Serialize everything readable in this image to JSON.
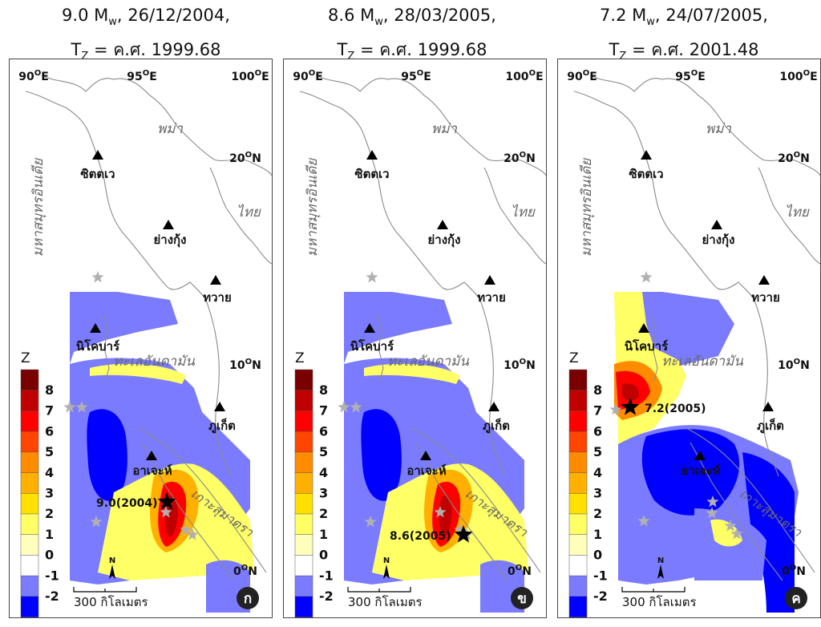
{
  "panels": [
    {
      "id": "a",
      "title_line1": "9.0 M",
      "title_sub1": "w",
      "title_rest1": ", 26/12/2004,",
      "title_line2_pre": "T",
      "title_sub2": "Z",
      "title_line2_rest": " = ค.ศ. 1999.68",
      "badge": "ก",
      "event_label": "9.0(2004)"
    },
    {
      "id": "b",
      "title_line1": "8.6 M",
      "title_sub1": "w",
      "title_rest1": ", 28/03/2005,",
      "title_line2_pre": "T",
      "title_sub2": "Z",
      "title_line2_rest": " = ค.ศ. 1999.68",
      "badge": "ข",
      "event_label": "8.6(2005)"
    },
    {
      "id": "c",
      "title_line1": "7.2 M",
      "title_sub1": "w",
      "title_rest1": ", 24/07/2005,",
      "title_line2_pre": "T",
      "title_sub2": "Z",
      "title_line2_rest": " = ค.ศ. 2001.48",
      "badge": "ค",
      "event_label": "7.2(2005)"
    }
  ],
  "map_labels": {
    "lon_90": "90",
    "lon_95": "95",
    "lon_100": "100",
    "lon_suffix": "E",
    "lat_20": "20",
    "lat_10": "10",
    "lat_0": "0",
    "lat_suffix": "N",
    "deg": "O",
    "myanmar": "พม่า",
    "thailand": "ไทย",
    "indian_ocean": "มหาสมุทรอินเดีย",
    "andaman_sea": "ทะเลอันดามัน",
    "sumatra": "เกาะสุมาตรา",
    "sittwe": "ซิตตเว",
    "yangon": "ย่างกุ้ง",
    "dawei": "ทวาย",
    "nicobar": "นิโคบาร์",
    "phuket": "ภูเก็ต",
    "aceh": "อาเจะห์",
    "scale_bar": "300 กิโลเมตร",
    "north": "N"
  },
  "legend": {
    "title": "Z",
    "ticks": [
      "8",
      "7",
      "6",
      "5",
      "4",
      "3",
      "2",
      "1",
      "0",
      "-1",
      "-2"
    ],
    "colors": [
      "#7a0000",
      "#c00000",
      "#ff0000",
      "#ff4500",
      "#ff8c00",
      "#ffb000",
      "#ffe000",
      "#ffff66",
      "#ffffbb",
      "#ffffff",
      "#7b7bff",
      "#0000ff"
    ]
  }
}
